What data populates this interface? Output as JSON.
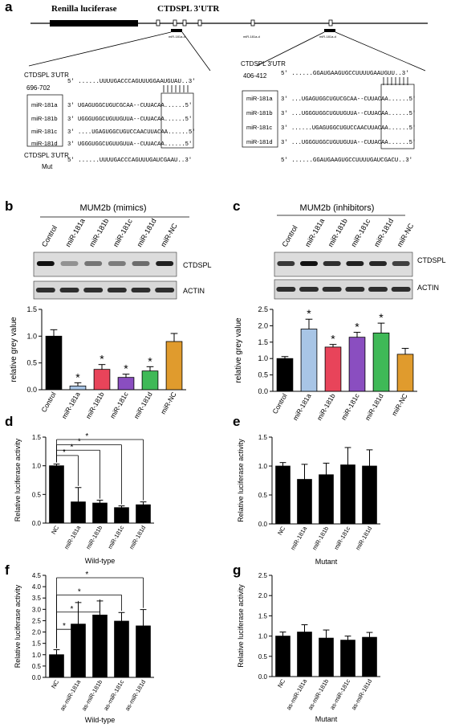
{
  "panel_letters": {
    "a": "a",
    "b": "b",
    "c": "c",
    "d": "d",
    "e": "e",
    "f": "f",
    "g": "g"
  },
  "gene_map": {
    "renilla_label": "Renilla luciferase",
    "utr_label": "CTDSPL 3'UTR",
    "sites": [
      "miR-181a-d",
      "miR-181a-d",
      "miR-181a-d"
    ]
  },
  "alignment_left": {
    "header": "CTDSPL 3'UTR",
    "position": "696-702",
    "utr_seq": "5' ......UUUUGACCCAGUUUGGAAUGUAU..3'",
    "mirnas": [
      {
        "name": "miR-181a",
        "seq": "3'  UGAGUGGCUGUCGCAA--CUUACAA......5'"
      },
      {
        "name": "miR-181b",
        "seq": "3'  UGGGUGGCUGUUGUUA--CUUACAA......5'"
      },
      {
        "name": "miR-181c",
        "seq": "3'  ....UGAGUGGCUGUCCAACUUACAA......5'"
      },
      {
        "name": "miR-181d",
        "seq": "3'  UGGGUGGCUGUUGUUA--CUUACAA......5'"
      }
    ],
    "mut_label": "CTDSPL 3'UTR",
    "mut_sub": "Mut",
    "mut_seq": "5' ......UUUUGACCCAGUUUGAUCGAAU..3'"
  },
  "alignment_right": {
    "header": "CTDSPL 3'UTR",
    "position": "406-412",
    "utr_seq": "5' ......GGAUGAAGUGCCUUUUGAAUGUU..3'",
    "mirnas": [
      {
        "name": "miR-181a",
        "seq": "3'  ...UGAGUGGCUGUCGCAA--CUUACAA......5'"
      },
      {
        "name": "miR-181b",
        "seq": "3'  ...UGGGUGGCUGUUGUUA--CUUACAA......5'"
      },
      {
        "name": "miR-181c",
        "seq": "3'  ......UGAGUGGCUGUCCAACUUACAA......5'"
      },
      {
        "name": "miR-181d",
        "seq": "3'  ...UGGGUGGCUGUUGUUA--CUUACAA......5'"
      }
    ],
    "mut_seq": "5' ......GGAUGAAGUGCCUUUUGAUCGACU..3'"
  },
  "blot_b": {
    "title": "MUM2b (mimics)",
    "lanes": [
      "Control",
      "miR-181a",
      "miR-181b",
      "miR-181c",
      "miR-181d",
      "miR-NC"
    ],
    "bands": [
      "CTDSPL",
      "ACTIN"
    ],
    "band_intensity": [
      1.0,
      0.15,
      0.35,
      0.3,
      0.4,
      0.9
    ]
  },
  "blot_c": {
    "title": "MUM2b (inhibitors)",
    "lanes": [
      "Control",
      "miR-181a",
      "miR-181b",
      "miR-181c",
      "miR-181d",
      "miR-NC"
    ],
    "bands": [
      "CTDSPL",
      "ACTIN"
    ],
    "band_intensity": [
      0.75,
      1.0,
      0.8,
      0.9,
      0.85,
      0.7
    ]
  },
  "chart_data": [
    {
      "id": "b",
      "type": "bar",
      "ylabel": "relative grey value",
      "ylim": [
        0,
        1.5
      ],
      "yticks": [
        "0.0",
        "0.5",
        "1.0",
        "1.5"
      ],
      "categories": [
        "Control",
        "miR-181a",
        "miR-181b",
        "miR-181c",
        "miR-181d",
        "miR-NC"
      ],
      "values": [
        1.0,
        0.07,
        0.38,
        0.23,
        0.35,
        0.9
      ],
      "errors": [
        0.12,
        0.06,
        0.09,
        0.06,
        0.08,
        0.15
      ],
      "colors": [
        "#000000",
        "#a8c5e6",
        "#e8445a",
        "#8a4ec0",
        "#3fb957",
        "#e09b2d"
      ],
      "significant": [
        false,
        true,
        true,
        true,
        true,
        false
      ]
    },
    {
      "id": "c",
      "type": "bar",
      "ylabel": "relative grey value",
      "ylim": [
        0,
        2.5
      ],
      "yticks": [
        "0.0",
        "0.5",
        "1.0",
        "1.5",
        "2.0",
        "2.5"
      ],
      "categories": [
        "Control",
        "miR-181a",
        "miR-181b",
        "miR-181c",
        "miR-181d",
        "miR-NC"
      ],
      "values": [
        1.0,
        1.9,
        1.35,
        1.65,
        1.78,
        1.13
      ],
      "errors": [
        0.06,
        0.3,
        0.08,
        0.15,
        0.3,
        0.18
      ],
      "colors": [
        "#000000",
        "#a8c5e6",
        "#e8445a",
        "#8a4ec0",
        "#3fb957",
        "#e09b2d"
      ],
      "significant": [
        false,
        true,
        true,
        true,
        true,
        false
      ]
    },
    {
      "id": "d",
      "type": "bar",
      "ylabel": "Relative luciferase activity",
      "xlabel": "Wild-type",
      "ylim": [
        0,
        1.5
      ],
      "yticks": [
        "0.0",
        "0.5",
        "1.0",
        "1.5"
      ],
      "categories": [
        "NC",
        "miR-181a",
        "miR-181b",
        "miR-181c",
        "miR-181d"
      ],
      "values": [
        1.0,
        0.37,
        0.35,
        0.27,
        0.32
      ],
      "errors": [
        0.03,
        0.25,
        0.05,
        0.03,
        0.05
      ],
      "brackets": [
        4,
        3,
        2,
        1
      ],
      "star": "*"
    },
    {
      "id": "e",
      "type": "bar",
      "ylabel": "Relative luciferase activity",
      "xlabel": "Mutant",
      "ylim": [
        0,
        1.5
      ],
      "yticks": [
        "0.0",
        "0.5",
        "1.0",
        "1.5"
      ],
      "categories": [
        "NC",
        "miR-181a",
        "miR-181b",
        "miR-181c",
        "miR-181d"
      ],
      "values": [
        1.0,
        0.77,
        0.85,
        1.02,
        1.0
      ],
      "errors": [
        0.06,
        0.26,
        0.2,
        0.3,
        0.28
      ]
    },
    {
      "id": "f",
      "type": "bar",
      "ylabel": "Relative luciferase activity",
      "xlabel": "Wild-type",
      "ylim": [
        0,
        4.5
      ],
      "yticks": [
        "0.0",
        "0.5",
        "1.0",
        "1.5",
        "2.0",
        "2.5",
        "3.0",
        "3.5",
        "4.0",
        "4.5"
      ],
      "categories": [
        "NC",
        "as-miR-181a",
        "as-miR-181b",
        "as-miR-181c",
        "as-miR-181d"
      ],
      "values": [
        1.0,
        2.35,
        2.75,
        2.48,
        2.27
      ],
      "errors": [
        0.22,
        0.95,
        0.62,
        0.38,
        0.72
      ],
      "brackets": [
        4,
        3,
        2,
        1
      ],
      "star": "*"
    },
    {
      "id": "g",
      "type": "bar",
      "ylabel": "Relative luciferase activity",
      "xlabel": "Mutant",
      "ylim": [
        0,
        2.5
      ],
      "yticks": [
        "0.0",
        "0.5",
        "1.0",
        "1.5",
        "2.0",
        "2.5"
      ],
      "categories": [
        "NC",
        "as-miR-181a",
        "as-miR-181b",
        "as-miR-181c",
        "as-miR-181d"
      ],
      "values": [
        1.0,
        1.1,
        0.95,
        0.9,
        0.97
      ],
      "errors": [
        0.1,
        0.18,
        0.2,
        0.1,
        0.12
      ]
    }
  ]
}
